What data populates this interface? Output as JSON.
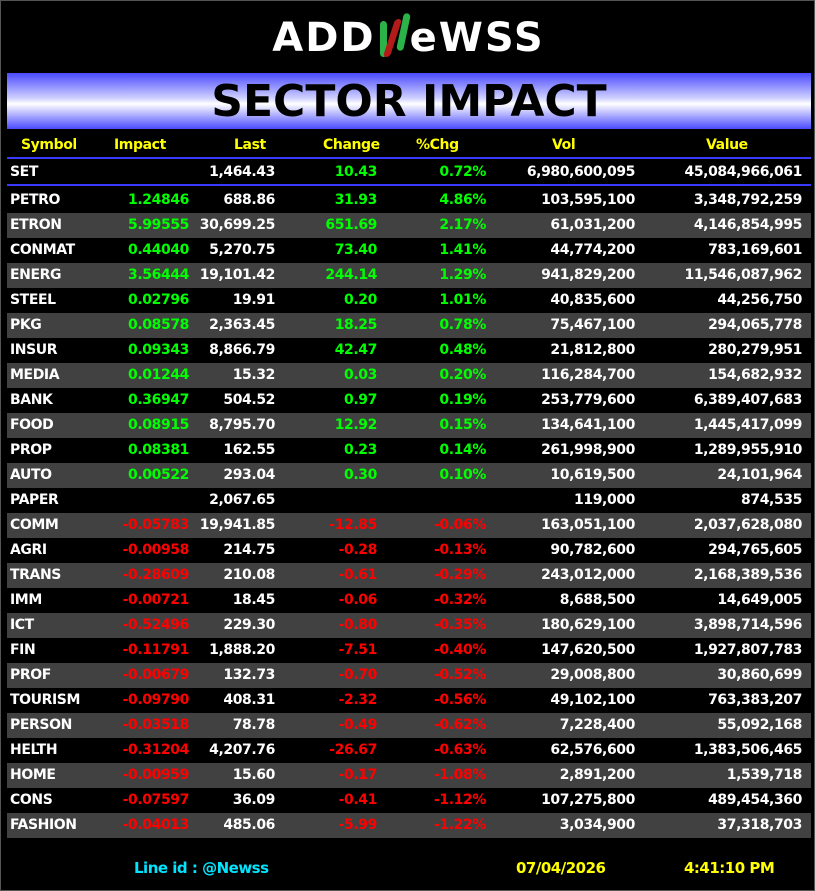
{
  "logo": {
    "text_left": "ADD",
    "text_right": "eWSS"
  },
  "title": "SECTOR IMPACT",
  "columns": {
    "symbol": "Symbol",
    "impact": "Impact",
    "last": "Last",
    "change": "Change",
    "pchg": "%Chg",
    "vol": "Vol",
    "value": "Value"
  },
  "index": {
    "symbol": "SET",
    "impact": "",
    "last": "1,464.43",
    "change": "10.43",
    "pchg": "0.72%",
    "vol": "6,980,600,095",
    "value": "45,084,966,061",
    "dir": "up"
  },
  "rows": [
    {
      "symbol": "PETRO",
      "impact": "1.24846",
      "last": "688.86",
      "change": "31.93",
      "pchg": "4.86%",
      "vol": "103,595,100",
      "value": "3,348,792,259",
      "dir": "up"
    },
    {
      "symbol": "ETRON",
      "impact": "5.99555",
      "last": "30,699.25",
      "change": "651.69",
      "pchg": "2.17%",
      "vol": "61,031,200",
      "value": "4,146,854,995",
      "dir": "up"
    },
    {
      "symbol": "CONMAT",
      "impact": "0.44040",
      "last": "5,270.75",
      "change": "73.40",
      "pchg": "1.41%",
      "vol": "44,774,200",
      "value": "783,169,601",
      "dir": "up"
    },
    {
      "symbol": "ENERG",
      "impact": "3.56444",
      "last": "19,101.42",
      "change": "244.14",
      "pchg": "1.29%",
      "vol": "941,829,200",
      "value": "11,546,087,962",
      "dir": "up"
    },
    {
      "symbol": "STEEL",
      "impact": "0.02796",
      "last": "19.91",
      "change": "0.20",
      "pchg": "1.01%",
      "vol": "40,835,600",
      "value": "44,256,750",
      "dir": "up"
    },
    {
      "symbol": "PKG",
      "impact": "0.08578",
      "last": "2,363.45",
      "change": "18.25",
      "pchg": "0.78%",
      "vol": "75,467,100",
      "value": "294,065,778",
      "dir": "up"
    },
    {
      "symbol": "INSUR",
      "impact": "0.09343",
      "last": "8,866.79",
      "change": "42.47",
      "pchg": "0.48%",
      "vol": "21,812,800",
      "value": "280,279,951",
      "dir": "up"
    },
    {
      "symbol": "MEDIA",
      "impact": "0.01244",
      "last": "15.32",
      "change": "0.03",
      "pchg": "0.20%",
      "vol": "116,284,700",
      "value": "154,682,932",
      "dir": "up"
    },
    {
      "symbol": "BANK",
      "impact": "0.36947",
      "last": "504.52",
      "change": "0.97",
      "pchg": "0.19%",
      "vol": "253,779,600",
      "value": "6,389,407,683",
      "dir": "up"
    },
    {
      "symbol": "FOOD",
      "impact": "0.08915",
      "last": "8,795.70",
      "change": "12.92",
      "pchg": "0.15%",
      "vol": "134,641,100",
      "value": "1,445,417,099",
      "dir": "up"
    },
    {
      "symbol": "PROP",
      "impact": "0.08381",
      "last": "162.55",
      "change": "0.23",
      "pchg": "0.14%",
      "vol": "261,998,900",
      "value": "1,289,955,910",
      "dir": "up"
    },
    {
      "symbol": "AUTO",
      "impact": "0.00522",
      "last": "293.04",
      "change": "0.30",
      "pchg": "0.10%",
      "vol": "10,619,500",
      "value": "24,101,964",
      "dir": "up"
    },
    {
      "symbol": "PAPER",
      "impact": "",
      "last": "2,067.65",
      "change": "",
      "pchg": "",
      "vol": "119,000",
      "value": "874,535",
      "dir": "flat"
    },
    {
      "symbol": "COMM",
      "impact": "-0.05783",
      "last": "19,941.85",
      "change": "-12.85",
      "pchg": "-0.06%",
      "vol": "163,051,100",
      "value": "2,037,628,080",
      "dir": "dn"
    },
    {
      "symbol": "AGRI",
      "impact": "-0.00958",
      "last": "214.75",
      "change": "-0.28",
      "pchg": "-0.13%",
      "vol": "90,782,600",
      "value": "294,765,605",
      "dir": "dn"
    },
    {
      "symbol": "TRANS",
      "impact": "-0.28609",
      "last": "210.08",
      "change": "-0.61",
      "pchg": "-0.29%",
      "vol": "243,012,000",
      "value": "2,168,389,536",
      "dir": "dn"
    },
    {
      "symbol": "IMM",
      "impact": "-0.00721",
      "last": "18.45",
      "change": "-0.06",
      "pchg": "-0.32%",
      "vol": "8,688,500",
      "value": "14,649,005",
      "dir": "dn"
    },
    {
      "symbol": "ICT",
      "impact": "-0.52496",
      "last": "229.30",
      "change": "-0.80",
      "pchg": "-0.35%",
      "vol": "180,629,100",
      "value": "3,898,714,596",
      "dir": "dn"
    },
    {
      "symbol": "FIN",
      "impact": "-0.11791",
      "last": "1,888.20",
      "change": "-7.51",
      "pchg": "-0.40%",
      "vol": "147,620,500",
      "value": "1,927,807,783",
      "dir": "dn"
    },
    {
      "symbol": "PROF",
      "impact": "-0.00679",
      "last": "132.73",
      "change": "-0.70",
      "pchg": "-0.52%",
      "vol": "29,008,800",
      "value": "30,860,699",
      "dir": "dn"
    },
    {
      "symbol": "TOURISM",
      "impact": "-0.09790",
      "last": "408.31",
      "change": "-2.32",
      "pchg": "-0.56%",
      "vol": "49,102,100",
      "value": "763,383,207",
      "dir": "dn"
    },
    {
      "symbol": "PERSON",
      "impact": "-0.03518",
      "last": "78.78",
      "change": "-0.49",
      "pchg": "-0.62%",
      "vol": "7,228,400",
      "value": "55,092,168",
      "dir": "dn"
    },
    {
      "symbol": "HELTH",
      "impact": "-0.31204",
      "last": "4,207.76",
      "change": "-26.67",
      "pchg": "-0.63%",
      "vol": "62,576,600",
      "value": "1,383,506,465",
      "dir": "dn"
    },
    {
      "symbol": "HOME",
      "impact": "-0.00959",
      "last": "15.60",
      "change": "-0.17",
      "pchg": "-1.08%",
      "vol": "2,891,200",
      "value": "1,539,718",
      "dir": "dn"
    },
    {
      "symbol": "CONS",
      "impact": "-0.07597",
      "last": "36.09",
      "change": "-0.41",
      "pchg": "-1.12%",
      "vol": "107,275,800",
      "value": "489,454,360",
      "dir": "dn"
    },
    {
      "symbol": "FASHION",
      "impact": "-0.04013",
      "last": "485.06",
      "change": "-5.99",
      "pchg": "-1.22%",
      "vol": "3,034,900",
      "value": "37,318,703",
      "dir": "dn"
    }
  ],
  "footer": {
    "line_id": "Line id  : @Newss",
    "date": "07/04/2026",
    "time": "4:41:10 PM"
  },
  "colors": {
    "up": "#00ff00",
    "down": "#ff0000",
    "header": "#ffff00",
    "footer_id": "#00e5ff",
    "alt_row": "#414141"
  }
}
